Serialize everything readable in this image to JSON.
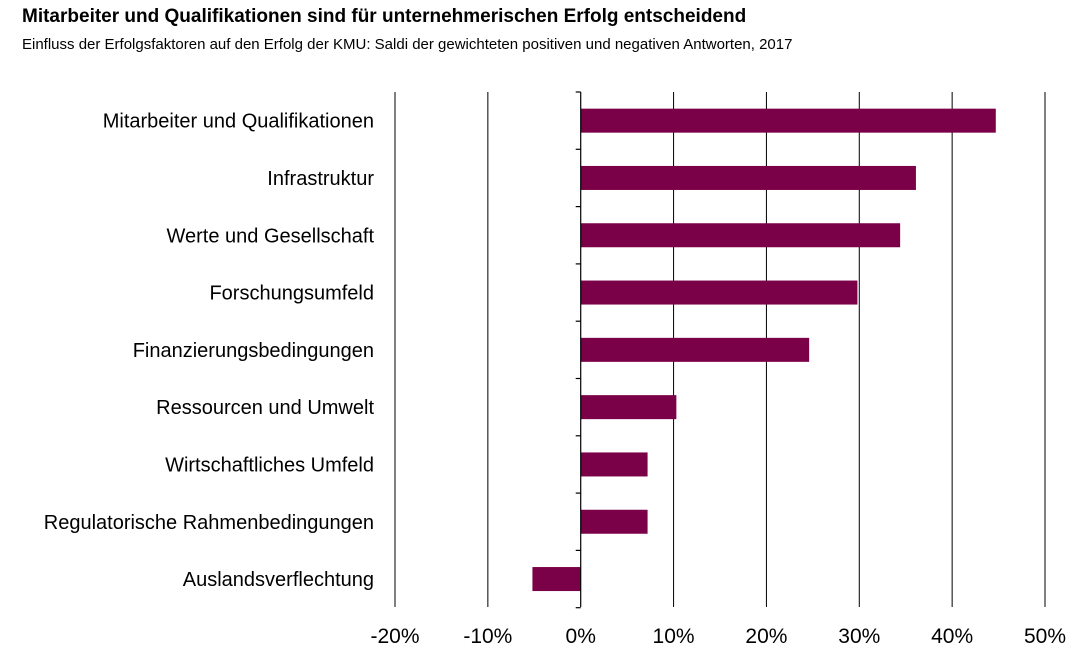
{
  "title": "Mitarbeiter und Qualifikationen sind für unternehmerischen Erfolg entscheidend",
  "subtitle": "Einfluss der Erfolgsfaktoren auf den Erfolg der KMU: Saldi der gewichteten positiven und negativen Antworten, 2017",
  "chart_data": {
    "type": "bar",
    "orientation": "horizontal",
    "categories": [
      "Mitarbeiter und Qualifikationen",
      "Infrastruktur",
      "Werte und Gesellschaft",
      "Forschungsumfeld",
      "Finanzierungsbedingungen",
      "Ressourcen und Umwelt",
      "Wirtschaftliches Umfeld",
      "Regulatorische Rahmenbedingungen",
      "Auslandsverflechtung"
    ],
    "values": [
      44.7,
      36.1,
      34.4,
      29.8,
      24.6,
      10.3,
      7.2,
      7.2,
      -5.2
    ],
    "xlim": [
      -20,
      50
    ],
    "xticks": [
      -20,
      -10,
      0,
      10,
      20,
      30,
      40,
      50
    ],
    "xtick_labels": [
      "-20%",
      "-10%",
      "0%",
      "10%",
      "20%",
      "30%",
      "40%",
      "50%"
    ],
    "bar_color": "#7a0048",
    "grid": "vertical",
    "legend": "none"
  }
}
